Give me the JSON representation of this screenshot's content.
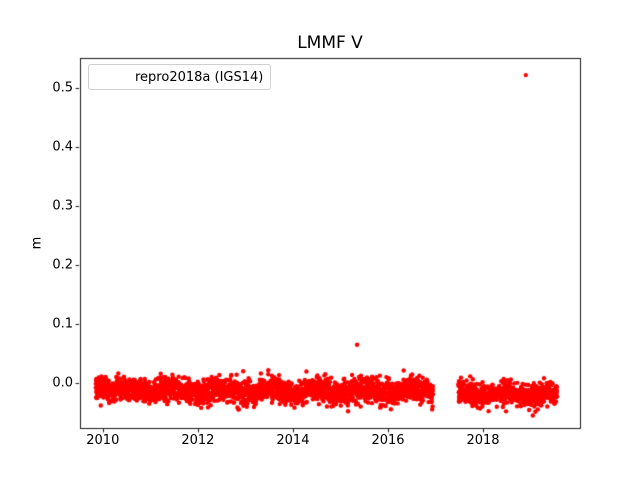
{
  "figure": {
    "background": "#ffffff"
  },
  "chart_data": {
    "type": "scatter",
    "title": "LMMF V",
    "xlabel": "",
    "ylabel": "m",
    "xlim": [
      2009.52,
      2020.04
    ],
    "ylim": [
      -0.076,
      0.551
    ],
    "xticks": [
      2010,
      2012,
      2014,
      2016,
      2018
    ],
    "yticks": [
      0.0,
      0.1,
      0.2,
      0.3,
      0.4,
      0.5
    ],
    "grid": false,
    "legend": {
      "position": "upper left",
      "entries": [
        {
          "label": "repro2018a (IGS14)",
          "marker": "dot-icon",
          "color": "#ff0000"
        }
      ]
    },
    "series": [
      {
        "name": "repro2018a (IGS14)",
        "color": "#ff0000",
        "marker": "point",
        "marker_radius_px": 2.2,
        "band_segments": [
          {
            "x_start": 2009.85,
            "x_end": 2016.95,
            "y_mean": -0.013,
            "y_sigma": 0.01,
            "seasonal_amp": 0.004,
            "seasonal_phase": 0.25,
            "points_per_year": 330,
            "y_min": -0.056,
            "y_max": 0.022,
            "start_bump": {
              "until": 2010.25,
              "amount": 0.01
            }
          },
          {
            "x_start": 2017.48,
            "x_end": 2019.56,
            "y_mean": -0.019,
            "y_sigma": 0.009,
            "seasonal_amp": 0.003,
            "seasonal_phase": 0.25,
            "points_per_year": 330,
            "y_min": -0.056,
            "y_max": 0.014
          }
        ],
        "outliers": [
          {
            "x": 2015.35,
            "y": 0.065
          },
          {
            "x": 2018.9,
            "y": 0.522
          }
        ]
      }
    ]
  }
}
